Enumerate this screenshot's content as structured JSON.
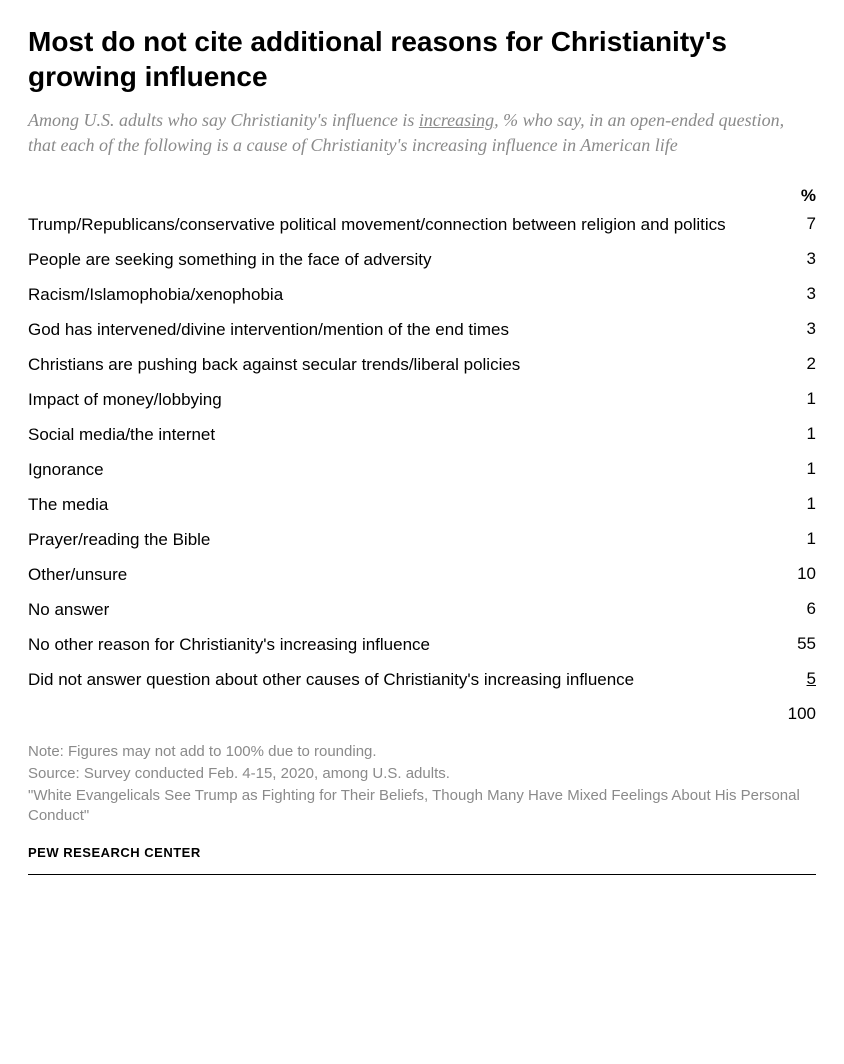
{
  "title": "Most do not cite additional reasons for Christianity's growing influence",
  "subtitle_pre": "Among U.S. adults who say Christianity's influence is ",
  "subtitle_underlined": "increasing",
  "subtitle_post": ", % who say, in an open-ended question, that each of the following is a cause of Christianity's increasing influence in American life",
  "column_header": "%",
  "rows": [
    {
      "label": "Trump/Republicans/conservative political movement/connection between religion and politics",
      "value": "7"
    },
    {
      "label": "People are seeking something in the face of adversity",
      "value": "3"
    },
    {
      "label": "Racism/Islamophobia/xenophobia",
      "value": "3"
    },
    {
      "label": "God has intervened/divine intervention/mention of the end times",
      "value": "3"
    },
    {
      "label": "Christians are pushing back against secular trends/liberal policies",
      "value": "2"
    },
    {
      "label": "Impact of money/lobbying",
      "value": "1"
    },
    {
      "label": "Social media/the internet",
      "value": "1"
    },
    {
      "label": "Ignorance",
      "value": "1"
    },
    {
      "label": "The media",
      "value": "1"
    },
    {
      "label": "Prayer/reading the Bible",
      "value": "1"
    },
    {
      "label": "Other/unsure",
      "value": "10"
    },
    {
      "label": "No answer",
      "value": "6"
    },
    {
      "label": "No other reason for Christianity's increasing influence",
      "value": "55"
    },
    {
      "label": "Did not answer question about other causes of Christianity's increasing influence",
      "value": "5",
      "underlined": true
    }
  ],
  "total": "100",
  "notes": [
    "Note: Figures may not add to 100% due to rounding.",
    "Source: Survey conducted Feb. 4-15, 2020, among U.S. adults.",
    "\"White Evangelicals See Trump as Fighting for Their Beliefs, Though Many Have Mixed Feelings About His Personal Conduct\""
  ],
  "attribution": "PEW RESEARCH CENTER",
  "styles": {
    "title_fontsize": 28,
    "subtitle_fontsize": 18,
    "row_fontsize": 17,
    "note_fontsize": 15,
    "attribution_fontsize": 13,
    "title_color": "#000000",
    "subtitle_color": "#8a8a8a",
    "text_color": "#000000",
    "note_color": "#8a8a8a",
    "background_color": "#ffffff"
  }
}
